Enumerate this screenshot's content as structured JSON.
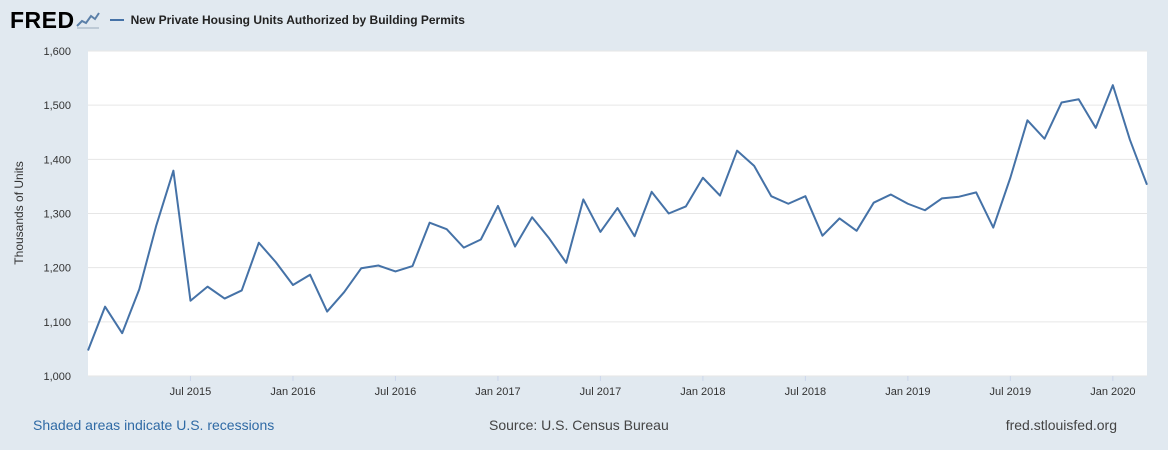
{
  "header": {
    "logo_text": "FRED",
    "logo_icon": "line-graph-icon",
    "series_title": "New Private Housing Units Authorized by Building Permits"
  },
  "footer": {
    "recession_note": "Shaded areas indicate U.S. recessions",
    "source": "Source: U.S. Census Bureau",
    "site": "fred.stlouisfed.org"
  },
  "colors": {
    "series": "#4572a7",
    "background": "#e1e9f0",
    "plot_background": "#ffffff",
    "link": "#2f6aa5"
  },
  "chart_data": {
    "type": "line",
    "title": "New Private Housing Units Authorized by Building Permits",
    "ylabel": "Thousands of Units",
    "xlabel": "",
    "ylim": [
      1000,
      1600
    ],
    "yticks": [
      1000,
      1100,
      1200,
      1300,
      1400,
      1500,
      1600
    ],
    "ytick_labels": [
      "1,000",
      "1,100",
      "1,200",
      "1,300",
      "1,400",
      "1,500",
      "1,600"
    ],
    "xlim": [
      "2015-01",
      "2020-03"
    ],
    "xticks": [
      "2015-07",
      "2016-01",
      "2016-07",
      "2017-01",
      "2017-07",
      "2018-01",
      "2018-07",
      "2019-01",
      "2019-07",
      "2020-01"
    ],
    "xtick_labels": [
      "Jul 2015",
      "Jan 2016",
      "Jul 2016",
      "Jan 2017",
      "Jul 2017",
      "Jan 2018",
      "Jul 2018",
      "Jan 2019",
      "Jul 2019",
      "Jan 2020"
    ],
    "grid": true,
    "legend": "top-left",
    "series": [
      {
        "name": "New Private Housing Units Authorized by Building Permits",
        "x": [
          "2015-01",
          "2015-02",
          "2015-03",
          "2015-04",
          "2015-05",
          "2015-06",
          "2015-07",
          "2015-08",
          "2015-09",
          "2015-10",
          "2015-11",
          "2015-12",
          "2016-01",
          "2016-02",
          "2016-03",
          "2016-04",
          "2016-05",
          "2016-06",
          "2016-07",
          "2016-08",
          "2016-09",
          "2016-10",
          "2016-11",
          "2016-12",
          "2017-01",
          "2017-02",
          "2017-03",
          "2017-04",
          "2017-05",
          "2017-06",
          "2017-07",
          "2017-08",
          "2017-09",
          "2017-10",
          "2017-11",
          "2017-12",
          "2018-01",
          "2018-02",
          "2018-03",
          "2018-04",
          "2018-05",
          "2018-06",
          "2018-07",
          "2018-08",
          "2018-09",
          "2018-10",
          "2018-11",
          "2018-12",
          "2019-01",
          "2019-02",
          "2019-03",
          "2019-04",
          "2019-05",
          "2019-06",
          "2019-07",
          "2019-08",
          "2019-09",
          "2019-10",
          "2019-11",
          "2019-12",
          "2020-01",
          "2020-02",
          "2020-03"
        ],
        "values": [
          1047,
          1128,
          1079,
          1160,
          1278,
          1379,
          1139,
          1165,
          1143,
          1158,
          1246,
          1210,
          1168,
          1187,
          1119,
          1155,
          1199,
          1204,
          1193,
          1203,
          1283,
          1271,
          1237,
          1252,
          1314,
          1239,
          1293,
          1254,
          1209,
          1326,
          1266,
          1310,
          1258,
          1340,
          1300,
          1313,
          1366,
          1333,
          1416,
          1388,
          1332,
          1318,
          1332,
          1259,
          1291,
          1268,
          1320,
          1335,
          1318,
          1306,
          1328,
          1331,
          1339,
          1274,
          1366,
          1472,
          1438,
          1505,
          1511,
          1458,
          1537,
          1436,
          1353
        ]
      }
    ]
  }
}
